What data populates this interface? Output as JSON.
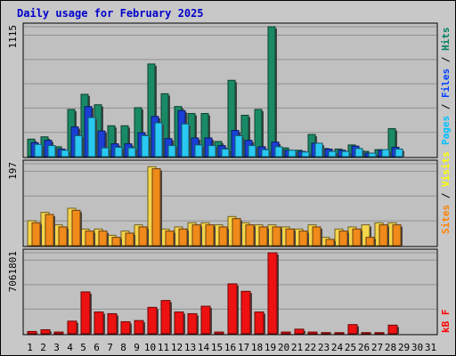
{
  "chart_data": {
    "type": "bar",
    "title": "Daily usage for February 2025",
    "x": [
      1,
      2,
      3,
      4,
      5,
      6,
      7,
      8,
      9,
      10,
      11,
      12,
      13,
      14,
      15,
      16,
      17,
      18,
      19,
      20,
      21,
      22,
      23,
      24,
      25,
      26,
      27,
      28,
      29,
      30,
      31
    ],
    "weekend_days": [
      1,
      2,
      8,
      9,
      15,
      16,
      22,
      23,
      29,
      30
    ],
    "panels": [
      {
        "id": "traffic",
        "max_label": "1115",
        "ylim": [
          0,
          1115
        ],
        "legend": [
          {
            "name": "Pages",
            "color": "#00c0ff"
          },
          {
            "name": "Files",
            "color": "#0040ff"
          },
          {
            "name": "Hits",
            "color": "#008060"
          }
        ],
        "series": [
          {
            "name": "Hits",
            "color": "#1a8a66",
            "values": [
              150,
              170,
              85,
              405,
              535,
              445,
              265,
              265,
              420,
              795,
              540,
              430,
              370,
              370,
              130,
              655,
              355,
              405,
              1115,
              75,
              55,
              190,
              70,
              65,
              100,
              45,
              60,
              240,
              0,
              0,
              0
            ]
          },
          {
            "name": "Files",
            "color": "#1a3fd6",
            "values": [
              120,
              140,
              65,
              255,
              430,
              220,
              110,
              110,
              205,
              345,
              155,
              395,
              160,
              160,
              95,
              225,
              140,
              85,
              125,
              55,
              45,
              115,
              65,
              55,
              90,
              30,
              55,
              80,
              0,
              0,
              0
            ]
          },
          {
            "name": "Pages",
            "color": "#29c9f2",
            "values": [
              105,
              95,
              55,
              180,
              335,
              75,
              80,
              75,
              180,
              290,
              95,
              280,
              100,
              95,
              65,
              180,
              95,
              60,
              85,
              55,
              40,
              115,
              45,
              45,
              70,
              30,
              60,
              65,
              0,
              0,
              0
            ]
          }
        ]
      },
      {
        "id": "visits",
        "max_label": "197",
        "ylim": [
          0,
          197
        ],
        "legend": [
          {
            "name": "Sites",
            "color": "#ff8000"
          },
          {
            "name": "Visits",
            "color": "#ffff00"
          }
        ],
        "series": [
          {
            "name": "Visits",
            "color": "#f5d54a",
            "values": [
              60,
              80,
              50,
              90,
              40,
              40,
              25,
              35,
              50,
              190,
              40,
              45,
              55,
              55,
              50,
              70,
              55,
              50,
              50,
              45,
              40,
              50,
              20,
              40,
              45,
              50,
              55,
              55,
              0,
              0,
              0
            ]
          },
          {
            "name": "Sites",
            "color": "#f08a1a",
            "values": [
              55,
              75,
              45,
              85,
              35,
              35,
              20,
              30,
              45,
              185,
              35,
              40,
              50,
              50,
              45,
              65,
              50,
              45,
              45,
              40,
              35,
              45,
              15,
              35,
              40,
              20,
              50,
              50,
              0,
              0,
              0
            ]
          }
        ]
      },
      {
        "id": "kbytes",
        "max_label": "7061801",
        "ylim": [
          0,
          7061801
        ],
        "legend": [
          {
            "name": "KBytes",
            "color": "#ff0000"
          }
        ],
        "legend_text": "kB F",
        "series": [
          {
            "name": "KBytes",
            "color": "#ee1111",
            "values": [
              200000,
              350000,
              150000,
              1100000,
              3650000,
              1900000,
              1750000,
              1050000,
              1150000,
              2300000,
              2900000,
              1900000,
              1750000,
              2400000,
              150000,
              4350000,
              3700000,
              1900000,
              7061801,
              150000,
              400000,
              150000,
              100000,
              100000,
              800000,
              100000,
              100000,
              750000,
              0,
              0,
              0
            ]
          }
        ]
      }
    ]
  }
}
